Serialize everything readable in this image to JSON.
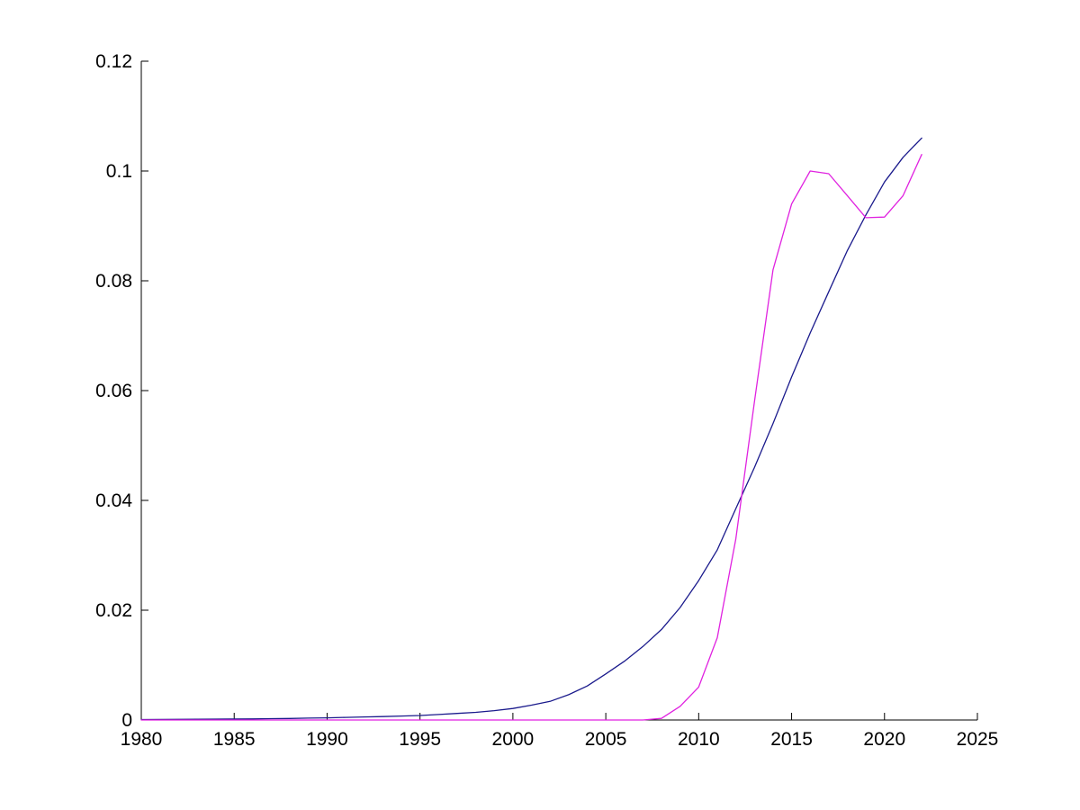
{
  "figure": {
    "background": "#ffffff",
    "axis_color": "#000000"
  },
  "chart_data": {
    "type": "line",
    "title": "",
    "xlabel": "",
    "ylabel": "",
    "grid": false,
    "legend": "none",
    "xlim": [
      1980,
      2025
    ],
    "ylim": [
      0,
      0.12
    ],
    "x_ticks": [
      1980,
      1985,
      1990,
      1995,
      2000,
      2005,
      2010,
      2015,
      2020,
      2025
    ],
    "x_tick_labels": [
      "1980",
      "1985",
      "1990",
      "1995",
      "2000",
      "2005",
      "2010",
      "2015",
      "2020",
      "2025"
    ],
    "y_ticks": [
      0,
      0.02,
      0.04,
      0.06,
      0.08,
      0.1,
      0.12
    ],
    "y_tick_labels": [
      "0",
      "0.02",
      "0.04",
      "0.06",
      "0.08",
      "0.1",
      "0.12"
    ],
    "x": [
      1980,
      1981,
      1982,
      1983,
      1984,
      1985,
      1986,
      1987,
      1988,
      1989,
      1990,
      1991,
      1992,
      1993,
      1994,
      1995,
      1996,
      1997,
      1998,
      1999,
      2000,
      2001,
      2002,
      2003,
      2004,
      2005,
      2006,
      2007,
      2008,
      2009,
      2010,
      2011,
      2012,
      2013,
      2014,
      2015,
      2016,
      2017,
      2018,
      2019,
      2020,
      2021,
      2022
    ],
    "series": [
      {
        "name": "smooth-sigmoid-curve",
        "color": "#1a1a8c",
        "values": [
          8e-05,
          0.0001,
          0.00012,
          0.00014,
          0.00016,
          0.00018,
          0.0002,
          0.00024,
          0.00028,
          0.00034,
          0.0004,
          0.00047,
          0.00055,
          0.00063,
          0.00072,
          0.00082,
          0.001,
          0.0012,
          0.0014,
          0.0017,
          0.0021,
          0.0027,
          0.0034,
          0.0046,
          0.0062,
          0.0084,
          0.0107,
          0.0134,
          0.0165,
          0.0205,
          0.0254,
          0.031,
          0.0385,
          0.046,
          0.054,
          0.0625,
          0.0705,
          0.078,
          0.0855,
          0.092,
          0.098,
          0.1025,
          0.106
        ]
      },
      {
        "name": "magenta-curve",
        "color": "#e022e0",
        "values": [
          0,
          0,
          0,
          0,
          0,
          0,
          0,
          0,
          0,
          0,
          0,
          0,
          0,
          0,
          0,
          0,
          0,
          0,
          0,
          0,
          0,
          0,
          0,
          0,
          0,
          0,
          0,
          0,
          0.0003,
          0.0025,
          0.006,
          0.015,
          0.033,
          0.058,
          0.082,
          0.094,
          0.1,
          0.0995,
          0.0955,
          0.0915,
          0.0916,
          0.0955,
          0.103
        ]
      }
    ]
  }
}
